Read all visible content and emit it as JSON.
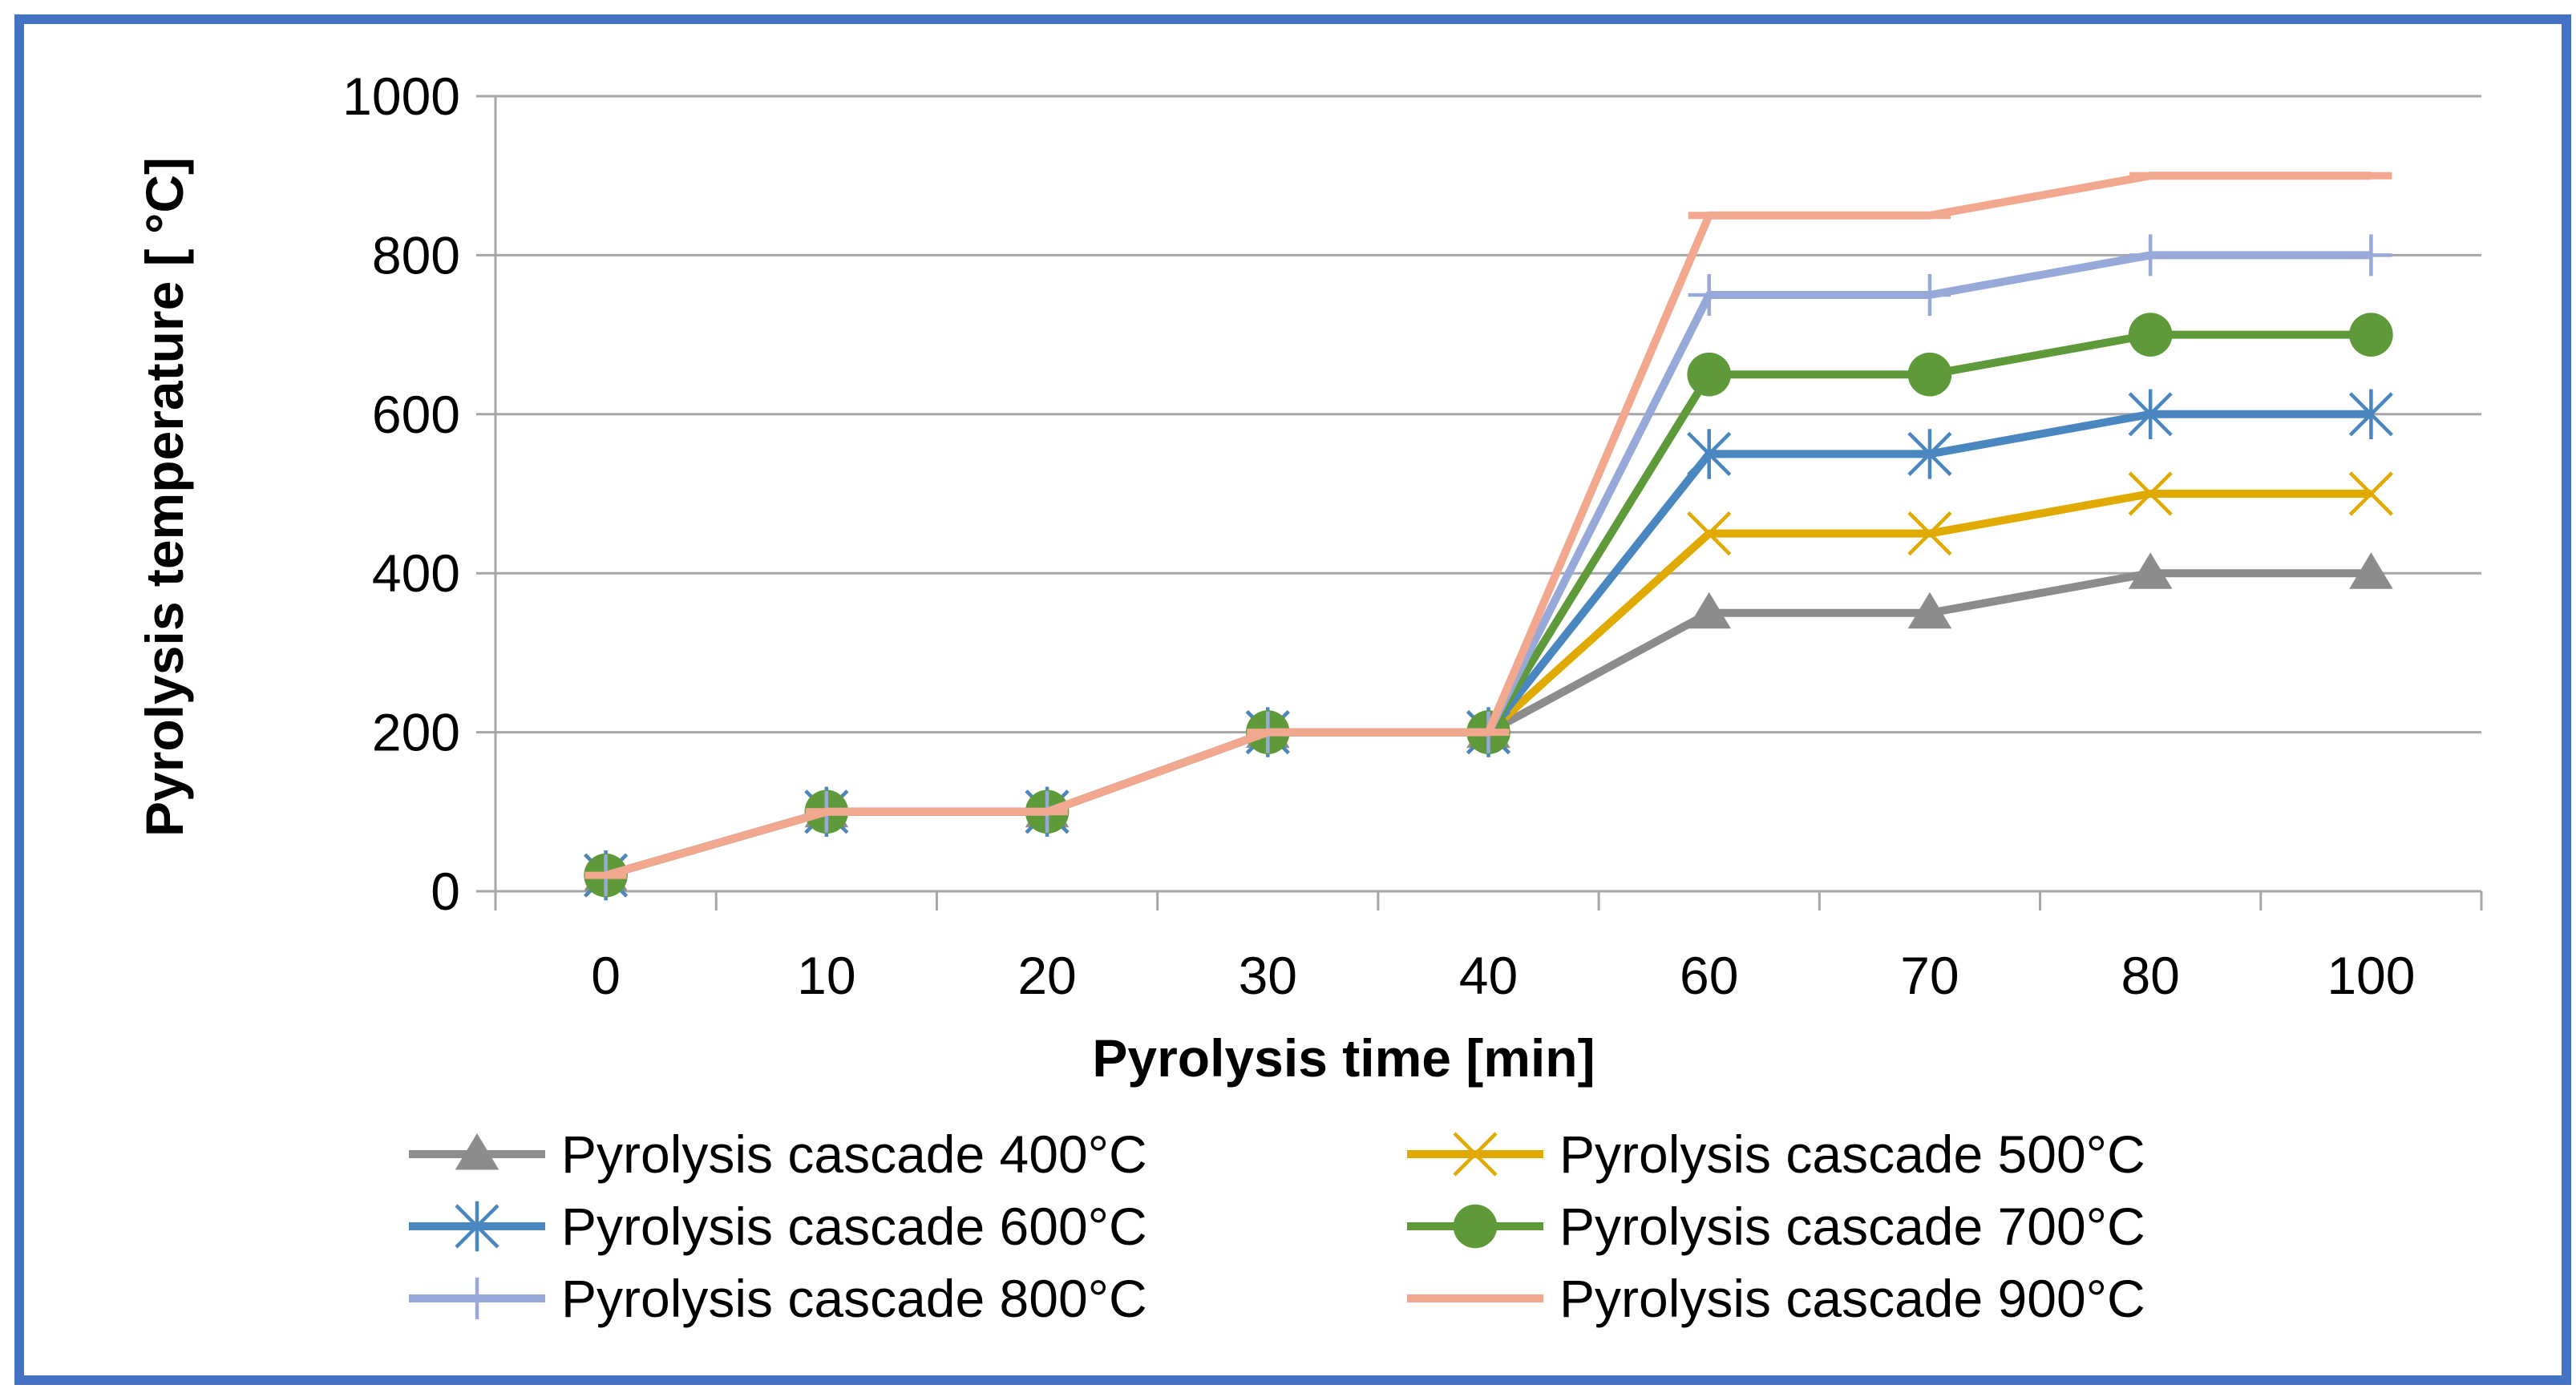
{
  "chart_data": {
    "type": "line",
    "title": "",
    "xlabel": "Pyrolysis time [min]",
    "ylabel": "Pyrolysis temperature [ °C]",
    "categories": [
      "0",
      "10",
      "20",
      "30",
      "40",
      "60",
      "70",
      "80",
      "100"
    ],
    "ylim": [
      0,
      1000
    ],
    "yticks": [
      "0",
      "200",
      "400",
      "600",
      "800",
      "1000"
    ],
    "grid": "horizontal",
    "legend_position": "bottom",
    "series": [
      {
        "name": "Pyrolysis cascade 400°C",
        "color": "#8C8C8C",
        "marker": "triangle",
        "values": [
          20,
          100,
          100,
          200,
          200,
          350,
          350,
          400,
          400
        ]
      },
      {
        "name": "Pyrolysis cascade 500°C",
        "color": "#E0AA00",
        "marker": "x",
        "values": [
          20,
          100,
          100,
          200,
          200,
          450,
          450,
          500,
          500
        ]
      },
      {
        "name": "Pyrolysis cascade 600°C",
        "color": "#4A87C0",
        "marker": "star",
        "values": [
          20,
          100,
          100,
          200,
          200,
          550,
          550,
          600,
          600
        ]
      },
      {
        "name": "Pyrolysis cascade 700°C",
        "color": "#5F9A3A",
        "marker": "circle",
        "values": [
          20,
          100,
          100,
          200,
          200,
          650,
          650,
          700,
          700
        ]
      },
      {
        "name": "Pyrolysis cascade 800°C",
        "color": "#97A9D9",
        "marker": "plus",
        "values": [
          20,
          100,
          100,
          200,
          200,
          750,
          750,
          800,
          800
        ]
      },
      {
        "name": "Pyrolysis cascade 900°C",
        "color": "#F2A88E",
        "marker": "dash",
        "values": [
          20,
          100,
          100,
          200,
          200,
          850,
          850,
          900,
          900
        ]
      }
    ]
  }
}
